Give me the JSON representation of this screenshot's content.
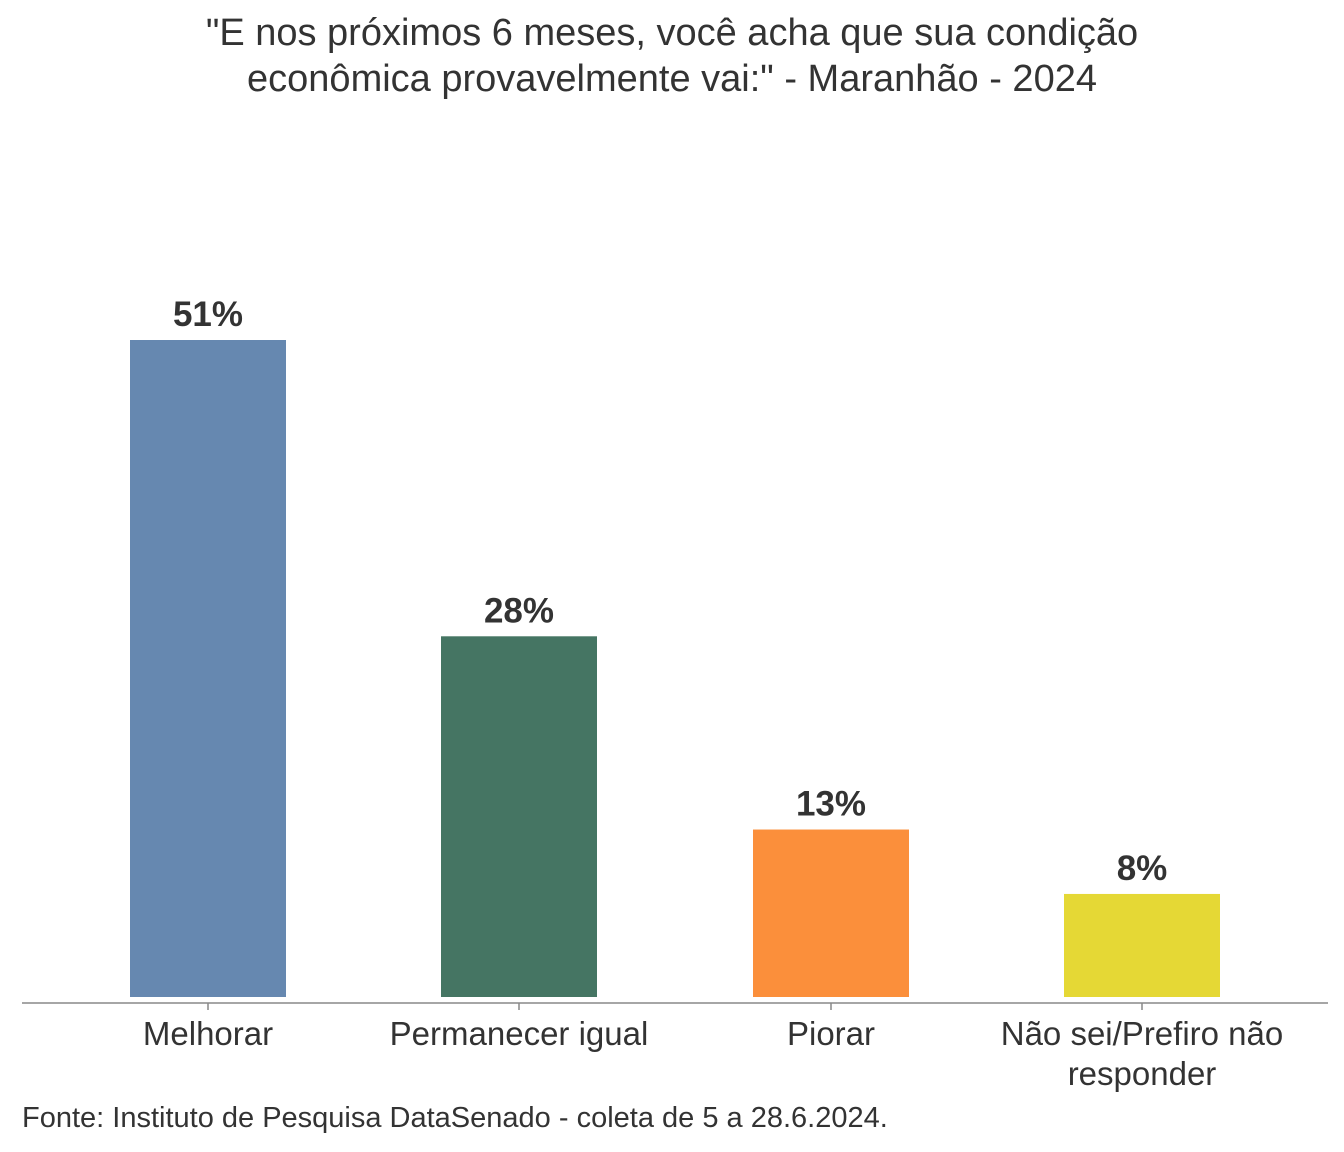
{
  "chart_data": {
    "type": "bar",
    "title_lines": [
      "\"E nos próximos 6 meses, você acha que sua condição",
      "econômica provavelmente vai:\" - Maranhão - 2024"
    ],
    "categories": [
      "Melhorar",
      "Permanecer igual",
      "Piorar",
      "Não sei/Prefiro não responder"
    ],
    "category_label_lines": [
      [
        "Melhorar"
      ],
      [
        "Permanecer igual"
      ],
      [
        "Piorar"
      ],
      [
        "Não sei/Prefiro não",
        "responder"
      ]
    ],
    "values": [
      51,
      28,
      13,
      8
    ],
    "data_labels": [
      "51%",
      "28%",
      "13%",
      "8%"
    ],
    "colors": [
      "#6688b0",
      "#457563",
      "#fb8f3b",
      "#e5d835"
    ],
    "ylim": [
      0,
      51
    ],
    "grid": false,
    "xlabel": "",
    "ylabel": ""
  },
  "source": "Fonte: Instituto de Pesquisa DataSenado - coleta de 5 a 28.6.2024."
}
